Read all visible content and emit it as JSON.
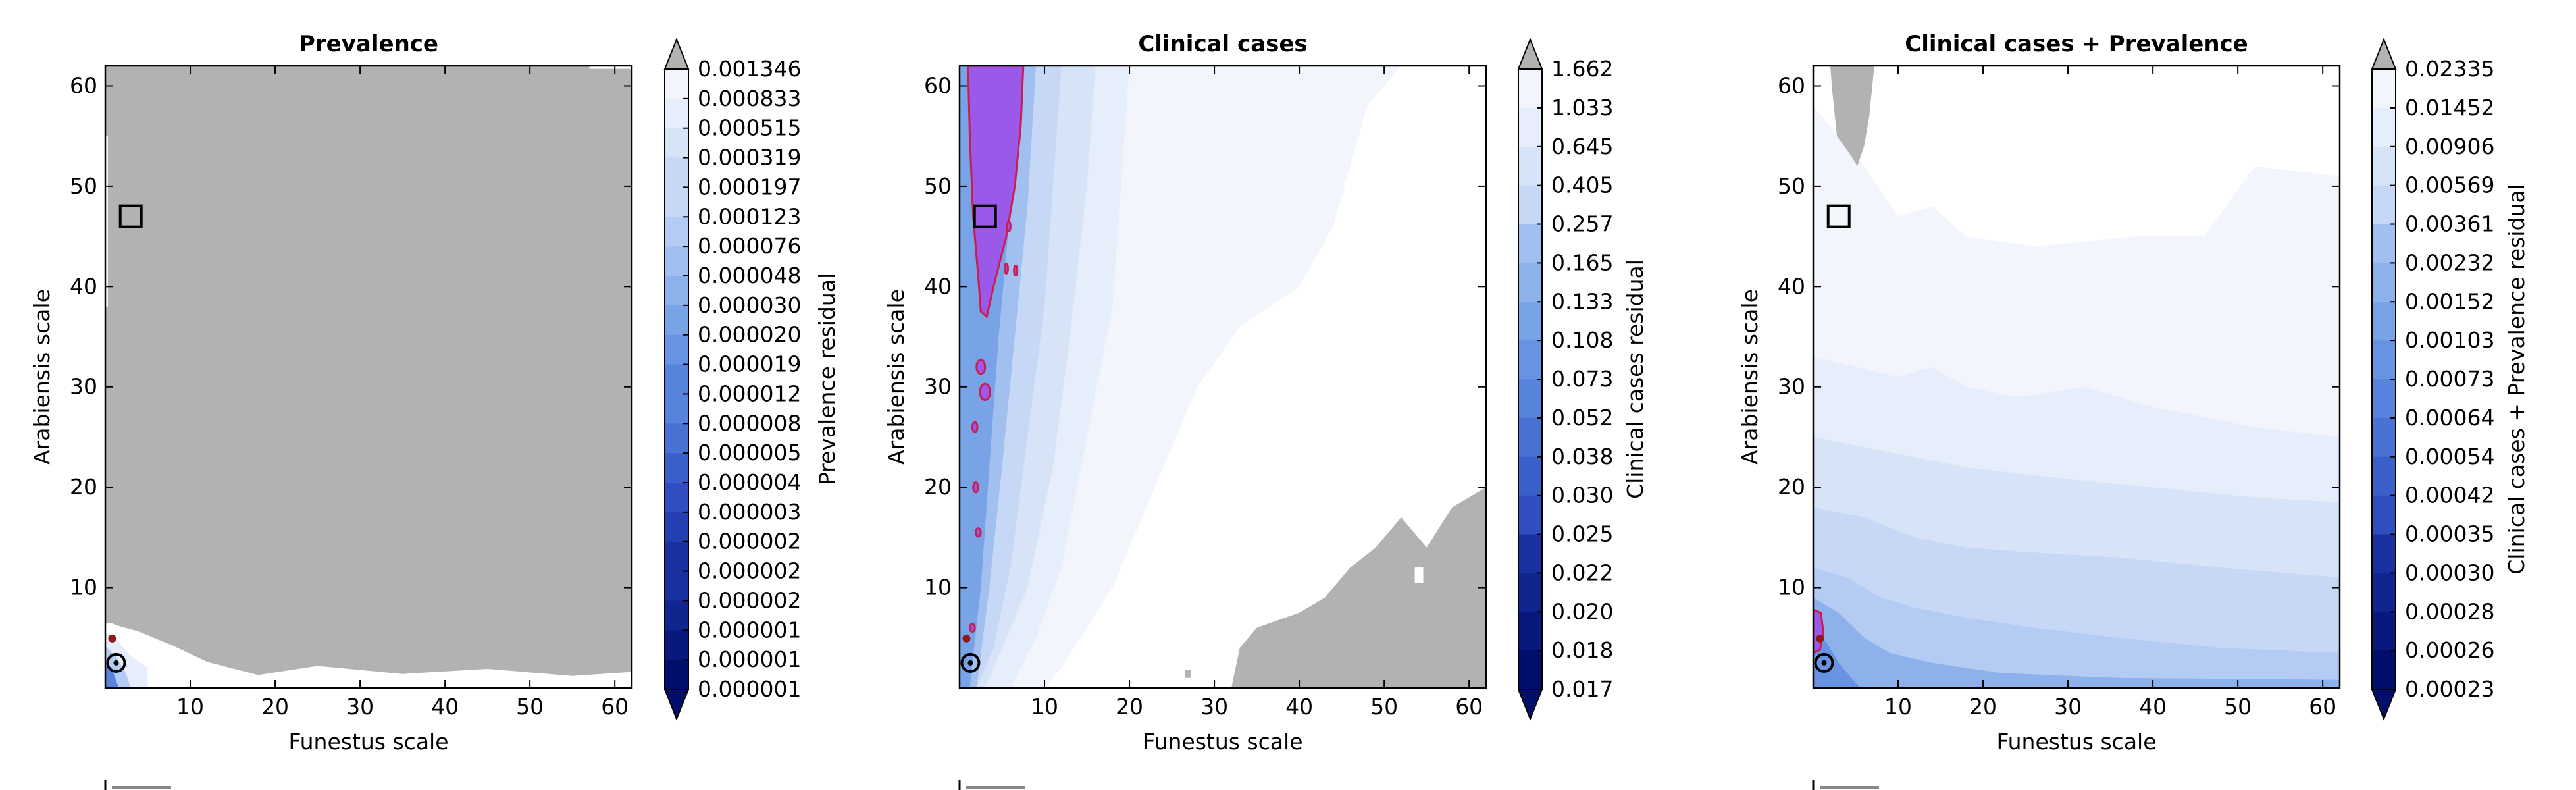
{
  "chart_data": [
    {
      "type": "contour",
      "title": "Prevalence",
      "xlabel": "Funestus scale",
      "ylabel": "Arabiensis scale",
      "xlim": [
        0,
        62
      ],
      "ylim": [
        0,
        62
      ],
      "xticks": [
        10,
        20,
        30,
        40,
        50,
        60
      ],
      "yticks": [
        10,
        20,
        30,
        40,
        50,
        60
      ],
      "colorbar": {
        "label": "Prevalence residual",
        "levels": [
          "0.001346",
          "0.000833",
          "0.000515",
          "0.000319",
          "0.000197",
          "0.000123",
          "0.000076",
          "0.000048",
          "0.000030",
          "0.000020",
          "0.000019",
          "0.000012",
          "0.000008",
          "0.000005",
          "0.000004",
          "0.000003",
          "0.000002",
          "0.000002",
          "0.000002",
          "0.000001",
          "0.000001",
          "0.000001"
        ]
      },
      "markers": [
        {
          "shape": "square",
          "x": 3,
          "y": 47
        },
        {
          "shape": "circle",
          "x": 0.5,
          "y": 2.5
        }
      ],
      "dominant_region": "above upper level (grey) across most of the parameter space; low residuals only near the bottom-left corner"
    },
    {
      "type": "contour",
      "title": "Clinical cases",
      "xlabel": "Funestus scale",
      "ylabel": "Arabiensis scale",
      "xlim": [
        0,
        62
      ],
      "ylim": [
        0,
        62
      ],
      "xticks": [
        10,
        20,
        30,
        40,
        50,
        60
      ],
      "yticks": [
        10,
        20,
        30,
        40,
        50,
        60
      ],
      "colorbar": {
        "label": "Clinical cases residual",
        "levels": [
          "1.662",
          "1.033",
          "0.645",
          "0.405",
          "0.257",
          "0.165",
          "0.133",
          "0.108",
          "0.073",
          "0.052",
          "0.038",
          "0.030",
          "0.025",
          "0.022",
          "0.020",
          "0.018",
          "0.017"
        ]
      },
      "markers": [
        {
          "shape": "square",
          "x": 3,
          "y": 47
        },
        {
          "shape": "circle",
          "x": 0.5,
          "y": 2.5
        }
      ],
      "dominant_region": "purple minimum band along Funestus scale ≈ 1–7; grey region in the lower right"
    },
    {
      "type": "contour",
      "title": "Clinical cases + Prevalence",
      "xlabel": "Funestus scale",
      "ylabel": "Arabiensis scale",
      "xlim": [
        0,
        62
      ],
      "ylim": [
        0,
        62
      ],
      "xticks": [
        10,
        20,
        30,
        40,
        50,
        60
      ],
      "yticks": [
        10,
        20,
        30,
        40,
        50,
        60
      ],
      "colorbar": {
        "label": "Clinical cases + Prevalence residual",
        "levels": [
          "0.02335",
          "0.01452",
          "0.00906",
          "0.00569",
          "0.00361",
          "0.00232",
          "0.00152",
          "0.00103",
          "0.00073",
          "0.00064",
          "0.00054",
          "0.00042",
          "0.00035",
          "0.00030",
          "0.00028",
          "0.00026",
          "0.00023"
        ]
      },
      "markers": [
        {
          "shape": "square",
          "x": 3,
          "y": 47
        },
        {
          "shape": "circle",
          "x": 0.5,
          "y": 2.5
        }
      ],
      "dominant_region": "light blue residuals across most of the space; small grey patch near the top-left corner; purple minimum at bottom-left"
    }
  ],
  "colors": {
    "grey": "#b2b2b2",
    "purple": "#9b59ea",
    "contour_line": "#c81e50",
    "blue_scale": [
      "#f2f6fc",
      "#e6eefb",
      "#d7e4f8",
      "#c6d8f6",
      "#b4ccf3",
      "#a1bfef",
      "#8db1eb",
      "#79a3e7",
      "#6793e2",
      "#5883dc",
      "#4a72d4",
      "#3c60ca",
      "#304ebf",
      "#2540b0",
      "#1a329f",
      "#10258d",
      "#08187c",
      "#020e6c"
    ]
  }
}
